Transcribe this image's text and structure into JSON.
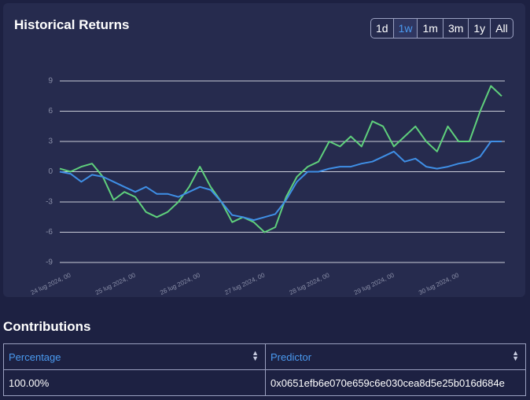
{
  "header": {
    "title": "Historical Returns",
    "range_buttons": [
      "1d",
      "1w",
      "1m",
      "3m",
      "1y",
      "All"
    ],
    "active_button": 1
  },
  "chart_data": {
    "type": "line",
    "categories": [
      null,
      "24 lug 2024, 00",
      null,
      null,
      null,
      null,
      null,
      "25 lug 2024, 00",
      null,
      null,
      null,
      null,
      null,
      "26 lug 2024, 00",
      null,
      null,
      null,
      null,
      null,
      "27 lug 2024, 00",
      null,
      null,
      null,
      null,
      null,
      "28 lug 2024, 00",
      null,
      null,
      null,
      null,
      null,
      "29 lug 2024, 00",
      null,
      null,
      null,
      null,
      null,
      "30 lug 2024, 00",
      null,
      null,
      null,
      null
    ],
    "series": [
      {
        "color": "#5fd07c",
        "values": [
          0.3,
          0,
          0.5,
          0.8,
          -0.5,
          -2.8,
          -2,
          -2.5,
          -4,
          -4.5,
          -4,
          -3,
          -1.5,
          0.5,
          -1.5,
          -3,
          -5,
          -4.5,
          -5,
          -6,
          -5.5,
          -2.5,
          -0.5,
          0.5,
          1,
          3,
          2.5,
          3.5,
          2.5,
          5,
          4.5,
          2.5,
          3.5,
          4.5,
          3,
          2,
          4.5,
          3,
          3,
          6,
          8.5,
          7.5
        ]
      },
      {
        "color": "#3f8fe6",
        "values": [
          0,
          -0.2,
          -1,
          -0.3,
          -0.5,
          -1,
          -1.5,
          -2,
          -1.5,
          -2.2,
          -2.2,
          -2.5,
          -2,
          -1.5,
          -1.8,
          -3,
          -4.3,
          -4.5,
          -4.8,
          -4.5,
          -4.2,
          -2.8,
          -1,
          0,
          0,
          0.3,
          0.5,
          0.5,
          0.8,
          1,
          1.5,
          2,
          1,
          1.3,
          0.5,
          0.3,
          0.5,
          0.8,
          1,
          1.5,
          3,
          3
        ]
      }
    ],
    "ylim": [
      -9,
      9
    ],
    "yticks": [
      -9,
      -6,
      -3,
      0,
      3,
      6,
      9
    ],
    "grid": true
  },
  "contributions": {
    "title": "Contributions",
    "columns": [
      "Percentage",
      "Predictor"
    ],
    "rows": [
      [
        "100.00%",
        "0x0651efb6e070e659c6e030cea8d5e25b016d684e"
      ]
    ]
  }
}
